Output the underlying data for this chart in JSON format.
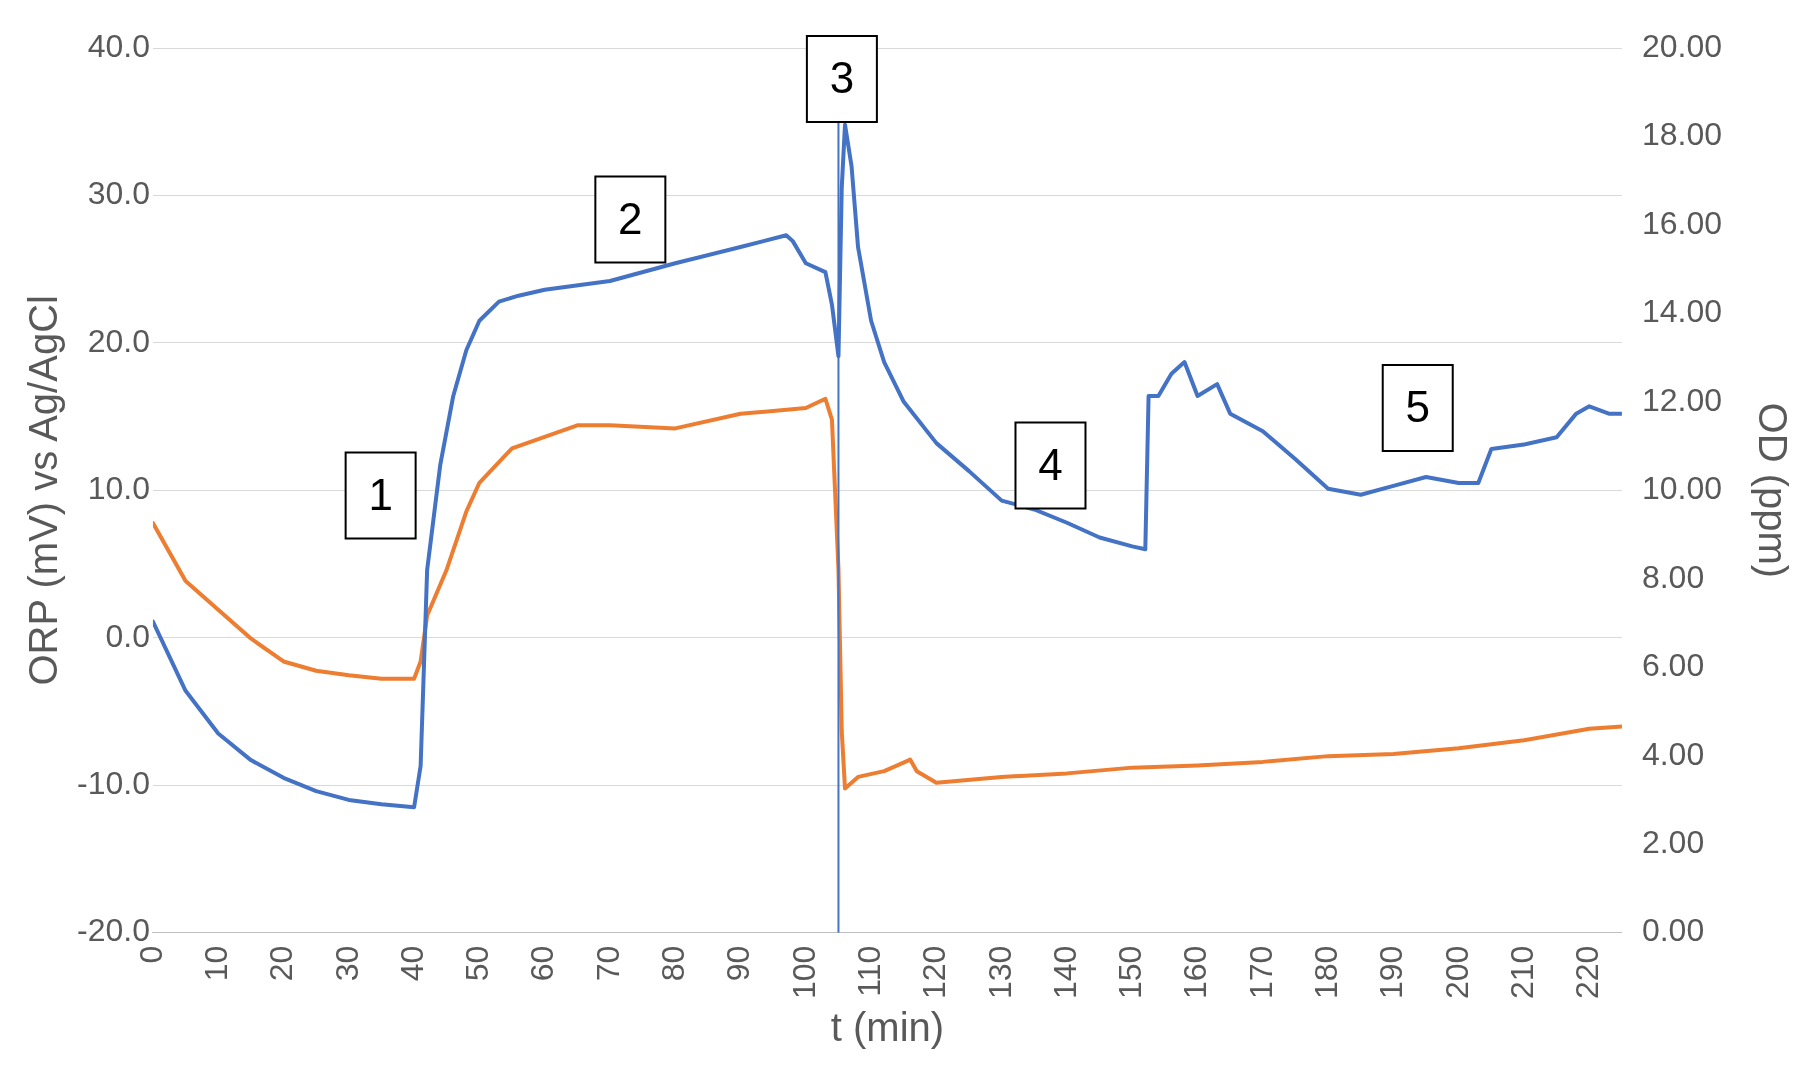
{
  "chart_data": {
    "type": "line",
    "xlabel": "t (min)",
    "ylabel": "ORP (mV) vs Ag/AgCl",
    "y2label": "OD (ppm)",
    "xlim": [
      0,
      225
    ],
    "xticks": [
      0,
      10,
      20,
      30,
      40,
      50,
      60,
      70,
      80,
      90,
      100,
      110,
      120,
      130,
      140,
      150,
      160,
      170,
      180,
      190,
      200,
      210,
      220
    ],
    "ylim": [
      -20,
      40
    ],
    "yticks": [
      {
        "value": -20,
        "label": "-20.0"
      },
      {
        "value": -10,
        "label": "-10.0"
      },
      {
        "value": 0,
        "label": "0.0"
      },
      {
        "value": 10,
        "label": "10.0"
      },
      {
        "value": 20,
        "label": "20.0"
      },
      {
        "value": 30,
        "label": "30.0"
      },
      {
        "value": 40,
        "label": "40.0"
      }
    ],
    "y2lim": [
      0,
      20
    ],
    "y2ticks": [
      {
        "value": 0,
        "label": "0.00"
      },
      {
        "value": 2,
        "label": "2.00"
      },
      {
        "value": 4,
        "label": "4.00"
      },
      {
        "value": 6,
        "label": "6.00"
      },
      {
        "value": 8,
        "label": "8.00"
      },
      {
        "value": 10,
        "label": "10.00"
      },
      {
        "value": 12,
        "label": "12.00"
      },
      {
        "value": 14,
        "label": "14.00"
      },
      {
        "value": 16,
        "label": "16.00"
      },
      {
        "value": 18,
        "label": "18.00"
      },
      {
        "value": 20,
        "label": "20.00"
      }
    ],
    "grid": "y",
    "legend": false,
    "marker": "none",
    "line_style": "solid",
    "series": [
      {
        "color": "#4472c4",
        "x": [
          0,
          5,
          10,
          15,
          20,
          25,
          30,
          35,
          40,
          41,
          42,
          44,
          46,
          48,
          50,
          53,
          56,
          60,
          70,
          80,
          90,
          97,
          98,
          100,
          103,
          104,
          105,
          105.5,
          106,
          107,
          108,
          110,
          112,
          115,
          120,
          125,
          130,
          135,
          140,
          145,
          150,
          152,
          152.5,
          154,
          156,
          158,
          160,
          163,
          165,
          170,
          175,
          180,
          185,
          190,
          195,
          200,
          203,
          205,
          210,
          215,
          218,
          220,
          223,
          225
        ],
        "values": [
          1.1,
          -3.6,
          -6.5,
          -8.3,
          -9.5,
          -10.4,
          -11.0,
          -11.3,
          -11.5,
          -8.7,
          4.6,
          11.7,
          16.4,
          19.5,
          21.5,
          22.8,
          23.2,
          23.6,
          24.2,
          25.4,
          26.5,
          27.3,
          26.9,
          25.4,
          24.8,
          22.6,
          19.1,
          30.5,
          34.8,
          32.0,
          26.5,
          21.5,
          18.7,
          16.0,
          13.2,
          11.3,
          9.3,
          8.7,
          7.8,
          6.8,
          6.2,
          6.0,
          16.4,
          16.4,
          17.9,
          18.7,
          16.4,
          17.2,
          15.2,
          14.0,
          12.1,
          10.1,
          9.7,
          10.3,
          10.9,
          10.5,
          10.5,
          12.8,
          13.1,
          13.6,
          15.2,
          15.7,
          15.2,
          15.2
        ]
      },
      {
        "color": "#ed7d31",
        "axis": "y2",
        "x": [
          0,
          5,
          10,
          15,
          20,
          25,
          30,
          35,
          40,
          41,
          42,
          45,
          48,
          50,
          55,
          60,
          65,
          70,
          80,
          90,
          100,
          103,
          104,
          105,
          105.5,
          106,
          108,
          112,
          116,
          117,
          120,
          130,
          140,
          150,
          160,
          170,
          180,
          190,
          200,
          210,
          220,
          225
        ],
        "values": [
          9.26,
          7.95,
          7.3,
          6.65,
          6.13,
          5.92,
          5.82,
          5.74,
          5.74,
          6.13,
          7.17,
          8.21,
          9.52,
          10.17,
          10.95,
          11.21,
          11.47,
          11.47,
          11.4,
          11.73,
          11.86,
          12.07,
          11.6,
          8.21,
          4.56,
          3.26,
          3.52,
          3.65,
          3.91,
          3.65,
          3.39,
          3.52,
          3.6,
          3.73,
          3.78,
          3.86,
          3.99,
          4.04,
          4.17,
          4.35,
          4.61,
          4.66
        ]
      }
    ],
    "ref_lines": [
      {
        "axis": "x",
        "value": 105,
        "color": "#4472c4",
        "line_style": "solid"
      }
    ],
    "annotations": [
      "1",
      "2",
      "3",
      "4",
      "5"
    ]
  }
}
